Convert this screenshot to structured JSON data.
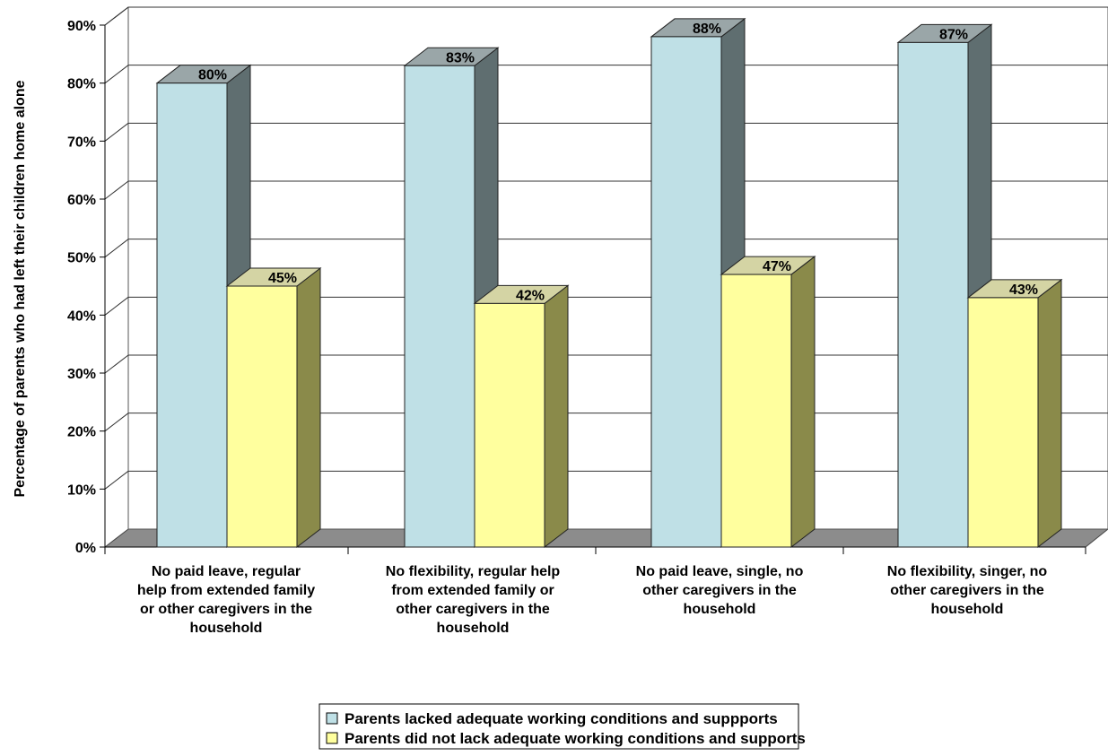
{
  "chart_data": {
    "type": "bar",
    "ylabel": "Percentage of parents who had left their children home alone",
    "ylim": [
      0,
      90
    ],
    "yticks": [
      0,
      10,
      20,
      30,
      40,
      50,
      60,
      70,
      80,
      90
    ],
    "ytick_suffix": "%",
    "grid": true,
    "legend_position": "bottom",
    "categories": [
      [
        "No paid leave, regular",
        "help from extended family",
        "or other caregivers in the",
        "household"
      ],
      [
        "No flexibility, regular help",
        "from extended family or",
        "other caregivers in the",
        "household"
      ],
      [
        "No paid leave, single, no",
        "other caregivers in the",
        "household"
      ],
      [
        "No flexibility, singer, no",
        "other caregivers in the",
        "household"
      ]
    ],
    "series": [
      {
        "name": "Parents lacked adequate working conditions and suppports",
        "values": [
          80,
          83,
          88,
          87
        ],
        "labels": [
          "80%",
          "83%",
          "88%",
          "87%"
        ],
        "color": "#bfe0e6",
        "side_color": "#5f6e70",
        "top_color": "#9aa6a8"
      },
      {
        "name": "Parents did not lack adequate working conditions and supports",
        "values": [
          45,
          42,
          47,
          43
        ],
        "labels": [
          "45%",
          "42%",
          "47%",
          "43%"
        ],
        "color": "#ffff9e",
        "side_color": "#8a8a4a",
        "top_color": "#d4d4a4"
      }
    ]
  }
}
